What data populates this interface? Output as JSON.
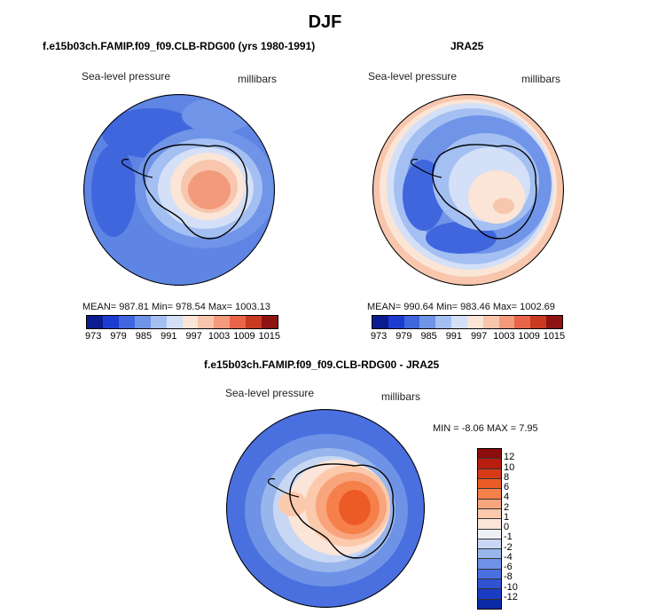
{
  "title": "DJF",
  "panels": [
    {
      "title": "f.e15b03ch.FAMIP.f09_f09.CLB-RDG00 (yrs 1980-1991)",
      "variable": "Sea-level pressure",
      "units": "millibars",
      "stats": "MEAN= 987.81   Min= 978.54   Max= 1003.13"
    },
    {
      "title": "JRA25",
      "variable": "Sea-level pressure",
      "units": "millibars",
      "stats": "MEAN= 990.64   Min= 983.46   Max= 1002.69"
    },
    {
      "title": "f.e15b03ch.FAMIP.f09_f09.CLB-RDG00 - JRA25",
      "variable": "Sea-level pressure",
      "units": "millibars",
      "stats": "MIN =   -8.06  MAX =    7.95"
    }
  ],
  "colorbar_levels": [
    "973",
    "979",
    "985",
    "991",
    "997",
    "1003",
    "1009",
    "1015"
  ],
  "colorbar_colors": [
    "#0a1c8e",
    "#1c3ccf",
    "#3f66dd",
    "#6f94e8",
    "#a4bff2",
    "#d3e0f7",
    "#fbe5d6",
    "#f7c6ad",
    "#f29a7b",
    "#e8654a",
    "#c83a22",
    "#8e1414"
  ],
  "diff_levels": [
    "12",
    "10",
    "8",
    "6",
    "4",
    "2",
    "1",
    "0",
    "-1",
    "-2",
    "-4",
    "-6",
    "-8",
    "-10",
    "-12"
  ],
  "diff_colors": [
    "#8b0d0d",
    "#b81e10",
    "#d83a18",
    "#ec5b26",
    "#f6804a",
    "#f8a47c",
    "#fbc9ac",
    "#fbe4d8",
    "#eef0f6",
    "#c8d8f4",
    "#99b6ec",
    "#6e92e6",
    "#4a70df",
    "#2f53d3",
    "#1a3cc3",
    "#0b2aa8"
  ]
}
